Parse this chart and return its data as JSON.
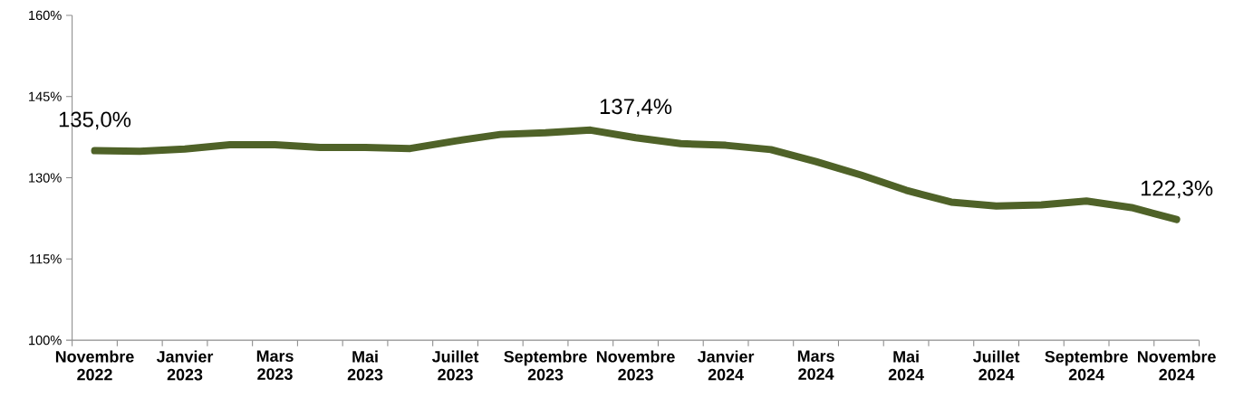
{
  "chart_data": {
    "type": "line",
    "categories": [
      "Novembre 2022",
      null,
      "Janvier 2023",
      null,
      "Mars 2023",
      null,
      "Mai 2023",
      null,
      "Juillet 2023",
      null,
      "Septembre 2023",
      null,
      "Novembre 2023",
      null,
      "Janvier 2024",
      null,
      "Mars 2024",
      null,
      "Mai 2024",
      null,
      "Juillet 2024",
      null,
      "Septembre 2024",
      null,
      "Novembre 2024"
    ],
    "series": [
      {
        "color": "#4f6228",
        "values": [
          135.0,
          134.9,
          135.3,
          136.1,
          136.1,
          135.6,
          135.6,
          135.4,
          136.8,
          138.0,
          138.3,
          138.8,
          137.4,
          136.3,
          136.0,
          135.2,
          133.0,
          130.5,
          127.7,
          125.5,
          124.8,
          125.0,
          125.7,
          124.5,
          122.3
        ],
        "value_labels": [
          "135,0%",
          null,
          null,
          null,
          null,
          null,
          null,
          null,
          null,
          null,
          null,
          null,
          "137,4%",
          null,
          null,
          null,
          null,
          null,
          null,
          null,
          null,
          null,
          null,
          null,
          "122,3%"
        ]
      }
    ],
    "ylim": [
      100,
      160
    ],
    "yticks": [
      {
        "value": 100,
        "label": "100%"
      },
      {
        "value": 115,
        "label": "115%"
      },
      {
        "value": 130,
        "label": "130%"
      },
      {
        "value": 145,
        "label": "145%"
      },
      {
        "value": 160,
        "label": "160%"
      }
    ],
    "grid": false,
    "legend": false,
    "marker": "none",
    "line_style": "solid"
  }
}
